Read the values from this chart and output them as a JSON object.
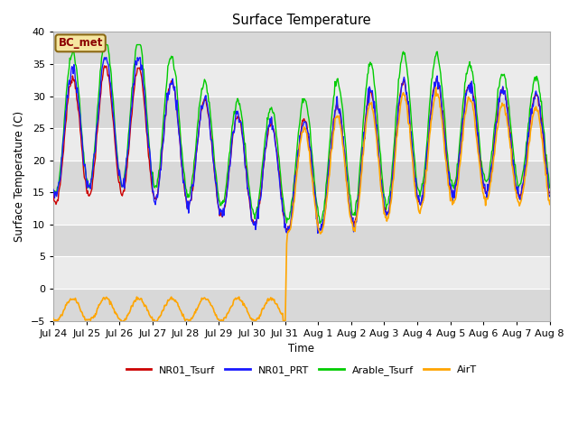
{
  "title": "Surface Temperature",
  "ylabel": "Surface Temperature (C)",
  "xlabel": "Time",
  "ylim": [
    -5,
    40
  ],
  "annotation_label": "BC_met",
  "legend_labels": [
    "NR01_Tsurf",
    "NR01_PRT",
    "Arable_Tsurf",
    "AirT"
  ],
  "legend_colors": [
    "#cc0000",
    "#1a1aff",
    "#00cc00",
    "#ffa500"
  ],
  "x_tick_labels": [
    "Jul 24",
    "Jul 25",
    "Jul 26",
    "Jul 27",
    "Jul 28",
    "Jul 29",
    "Jul 30",
    "Jul 31",
    "Aug 1",
    "Aug 2",
    "Aug 3",
    "Aug 4",
    "Aug 5",
    "Aug 6",
    "Aug 7",
    "Aug 8"
  ],
  "yticks": [
    -5,
    0,
    5,
    10,
    15,
    20,
    25,
    30,
    35,
    40
  ],
  "bg_light": "#ebebeb",
  "bg_dark": "#d8d8d8"
}
